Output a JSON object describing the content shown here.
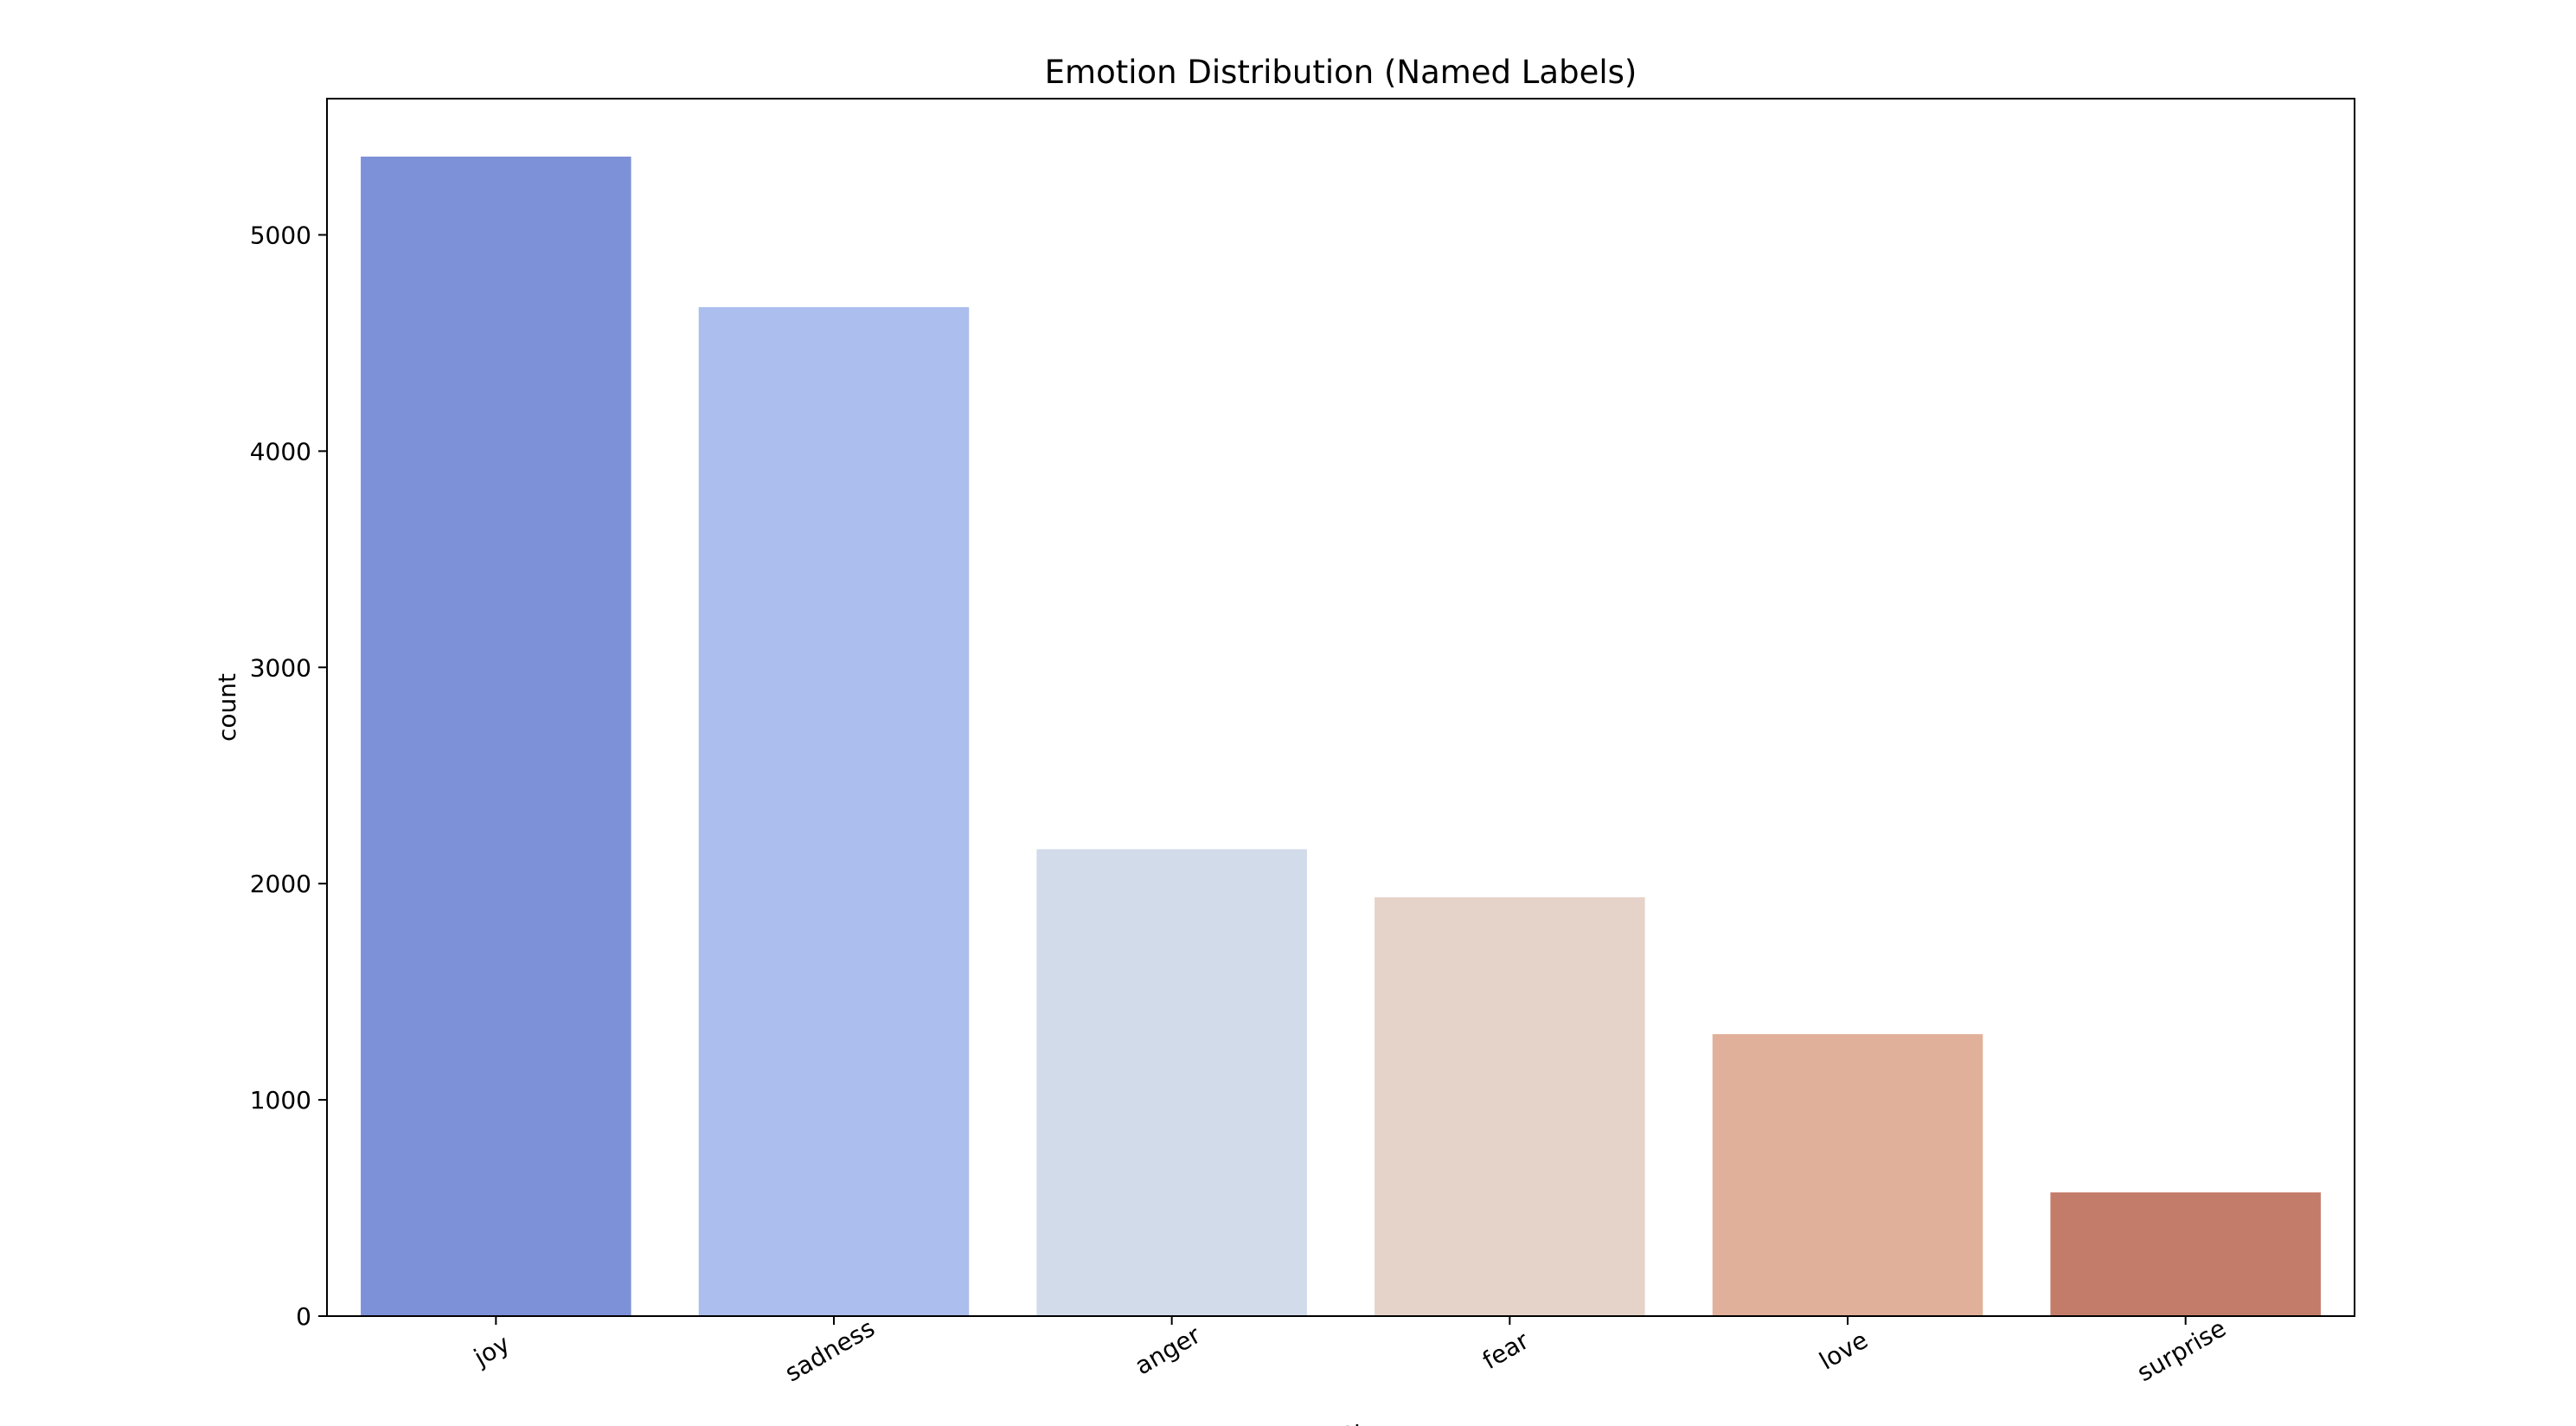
{
  "chart_data": {
    "type": "bar",
    "title": "Emotion Distribution (Named Labels)",
    "xlabel": "emotion",
    "ylabel": "count",
    "categories": [
      "joy",
      "sadness",
      "anger",
      "fear",
      "love",
      "surprise"
    ],
    "values": [
      5362,
      4666,
      2159,
      1937,
      1304,
      572
    ],
    "colors": [
      "#7d91d9",
      "#acbeee",
      "#d1dbea",
      "#e5d3c9",
      "#e1b09a",
      "#c47c6a"
    ],
    "ylim": [
      0,
      5630
    ],
    "yticks": [
      0,
      1000,
      2000,
      3000,
      4000,
      5000
    ],
    "grid": false,
    "legend": "none"
  }
}
